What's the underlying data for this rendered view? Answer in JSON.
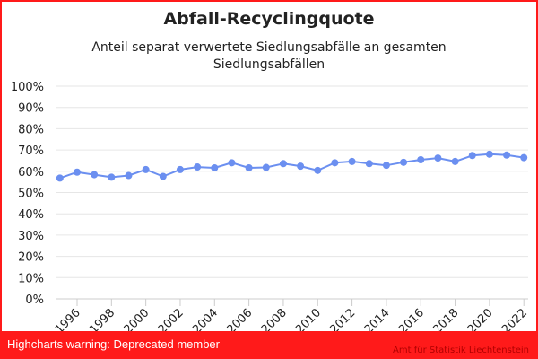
{
  "chart_data": {
    "type": "line",
    "title": "Abfall-Recyclingquote",
    "subtitle": "Anteil separat verwertete Siedlungsabfälle an gesamten Siedlungsabfällen",
    "xlabel": "",
    "ylabel": "",
    "ylim": [
      0,
      100
    ],
    "y_ticks": [
      "0%",
      "10%",
      "20%",
      "30%",
      "40%",
      "50%",
      "60%",
      "70%",
      "80%",
      "90%",
      "100%"
    ],
    "x_tick_labels": [
      "1996",
      "1998",
      "2000",
      "2002",
      "2004",
      "2006",
      "2008",
      "2010",
      "2012",
      "2014",
      "2016",
      "2018",
      "2020",
      "2022"
    ],
    "grid": true,
    "color": "#6b8ff0",
    "x": [
      1995,
      1996,
      1997,
      1998,
      1999,
      2000,
      2001,
      2002,
      2003,
      2004,
      2005,
      2006,
      2007,
      2008,
      2009,
      2010,
      2011,
      2012,
      2013,
      2014,
      2015,
      2016,
      2017,
      2018,
      2019,
      2020,
      2021,
      2022
    ],
    "values": [
      56.8,
      59.6,
      58.4,
      57.2,
      58.0,
      60.8,
      57.6,
      60.8,
      62.0,
      61.6,
      64.0,
      61.6,
      61.8,
      63.6,
      62.4,
      60.4,
      64.0,
      64.6,
      63.6,
      62.8,
      64.2,
      65.4,
      66.2,
      64.6,
      67.4,
      68.0,
      67.6,
      66.4
    ]
  },
  "warning": "Highcharts warning: Deprecated member",
  "credits": "Amt für Statistik Liechtenstein"
}
